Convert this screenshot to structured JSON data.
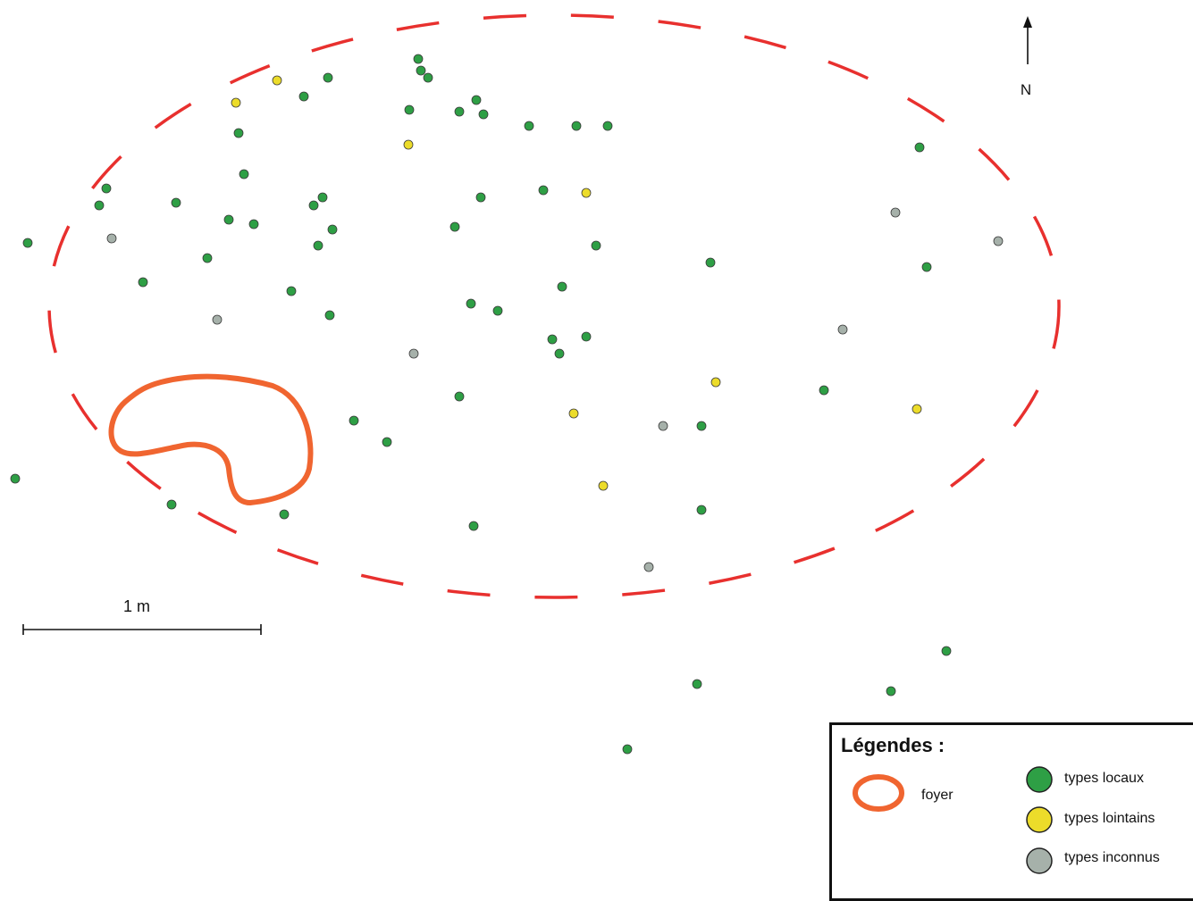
{
  "map": {
    "north_label": "N",
    "scale_label": "1 m",
    "colors": {
      "local": "#2e9f45",
      "distant": "#ecdc2a",
      "unknown": "#a6b1aa",
      "zone": "#e8302e",
      "hearth": "#f06530",
      "outline": "#222222"
    },
    "points": {
      "local": [
        [
          31,
          272
        ],
        [
          119,
          211
        ],
        [
          111,
          230
        ],
        [
          160,
          316
        ],
        [
          197,
          227
        ],
        [
          232,
          289
        ],
        [
          256,
          246
        ],
        [
          267,
          149
        ],
        [
          273,
          195
        ],
        [
          284,
          251
        ],
        [
          326,
          326
        ],
        [
          340,
          108
        ],
        [
          351,
          230
        ],
        [
          361,
          221
        ],
        [
          367,
          87
        ],
        [
          356,
          275
        ],
        [
          372,
          257
        ],
        [
          369,
          353
        ],
        [
          396,
          471
        ],
        [
          433,
          495
        ],
        [
          468,
          66
        ],
        [
          471,
          79
        ],
        [
          479,
          87
        ],
        [
          458,
          123
        ],
        [
          514,
          125
        ],
        [
          533,
          112
        ],
        [
          541,
          128
        ],
        [
          538,
          221
        ],
        [
          509,
          254
        ],
        [
          527,
          340
        ],
        [
          557,
          348
        ],
        [
          514,
          444
        ],
        [
          592,
          141
        ],
        [
          645,
          141
        ],
        [
          680,
          141
        ],
        [
          608,
          213
        ],
        [
          667,
          275
        ],
        [
          629,
          321
        ],
        [
          618,
          380
        ],
        [
          656,
          377
        ],
        [
          626,
          396
        ],
        [
          795,
          294
        ],
        [
          922,
          437
        ],
        [
          785,
          477
        ],
        [
          785,
          571
        ],
        [
          530,
          589
        ],
        [
          318,
          576
        ],
        [
          192,
          565
        ],
        [
          17,
          536
        ],
        [
          1029,
          165
        ],
        [
          1037,
          299
        ],
        [
          1059,
          729
        ],
        [
          997,
          774
        ],
        [
          780,
          766
        ],
        [
          702,
          839
        ]
      ],
      "distant": [
        [
          310,
          90
        ],
        [
          264,
          115
        ],
        [
          457,
          162
        ],
        [
          656,
          216
        ],
        [
          801,
          428
        ],
        [
          642,
          463
        ],
        [
          675,
          544
        ],
        [
          1026,
          458
        ]
      ],
      "unknown": [
        [
          125,
          267
        ],
        [
          243,
          358
        ],
        [
          463,
          396
        ],
        [
          742,
          477
        ],
        [
          726,
          635
        ],
        [
          943,
          369
        ],
        [
          1002,
          238
        ],
        [
          1117,
          270
        ]
      ]
    }
  },
  "legend": {
    "title": "Légendes :",
    "hearth_label": "foyer",
    "local_label": "types locaux",
    "distant_label": "types lointains",
    "unknown_label": "types inconnus"
  }
}
